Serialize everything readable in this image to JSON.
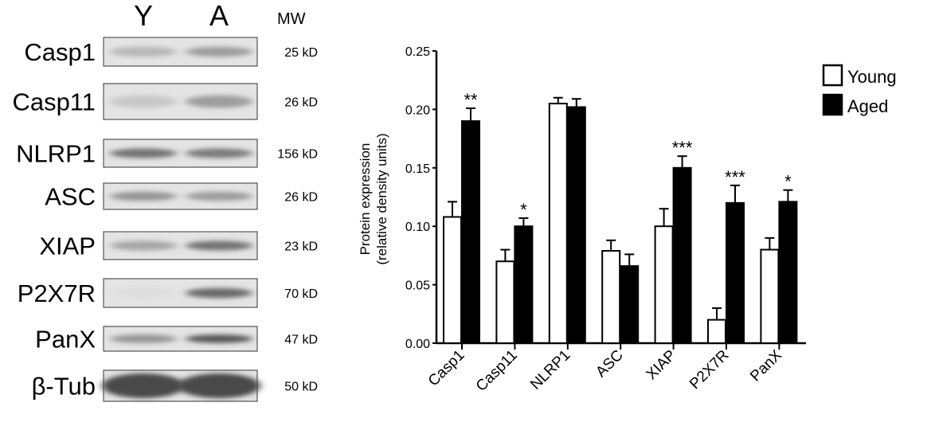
{
  "blot": {
    "lane_labels": [
      "Y",
      "A"
    ],
    "mw_header": "MW",
    "rows": [
      {
        "protein": "Casp1",
        "mw": "25 kD",
        "band_intensity": [
          0.25,
          0.4
        ]
      },
      {
        "protein": "Casp11",
        "mw": "26 kD",
        "band_intensity": [
          0.15,
          0.4
        ]
      },
      {
        "protein": "NLRP1",
        "mw": "156 kD",
        "band_intensity": [
          0.65,
          0.6
        ]
      },
      {
        "protein": "ASC",
        "mw": "26 kD",
        "band_intensity": [
          0.45,
          0.4
        ]
      },
      {
        "protein": "XIAP",
        "mw": "23 kD",
        "band_intensity": [
          0.35,
          0.65
        ]
      },
      {
        "protein": "P2X7R",
        "mw": "70 kD",
        "band_intensity": [
          0.02,
          0.7
        ]
      },
      {
        "protein": "PanX",
        "mw": "47 kD",
        "band_intensity": [
          0.45,
          0.8
        ]
      },
      {
        "protein": "β-Tub",
        "mw": "50 kD",
        "band_intensity": [
          0.9,
          0.9
        ]
      }
    ]
  },
  "chart_data": {
    "type": "bar",
    "ylabel_lines": [
      "Protein expression",
      "(relative density units)"
    ],
    "ylim": [
      0,
      0.25
    ],
    "yticks": [
      "0.00",
      "0.05",
      "0.10",
      "0.15",
      "0.20",
      "0.25"
    ],
    "categories": [
      "Casp1",
      "Casp11",
      "NLRP1",
      "ASC",
      "XIAP",
      "P2X7R",
      "PanX"
    ],
    "series": [
      {
        "name": "Young",
        "color": "#ffffff",
        "values": [
          0.108,
          0.07,
          0.205,
          0.079,
          0.1,
          0.02,
          0.08
        ],
        "errors": [
          0.013,
          0.01,
          0.005,
          0.009,
          0.015,
          0.01,
          0.01
        ]
      },
      {
        "name": "Aged",
        "color": "#000000",
        "values": [
          0.19,
          0.1,
          0.202,
          0.066,
          0.15,
          0.12,
          0.121
        ],
        "errors": [
          0.011,
          0.007,
          0.007,
          0.01,
          0.01,
          0.015,
          0.01
        ]
      }
    ],
    "significance": [
      "**",
      "*",
      "",
      "",
      "***",
      "***",
      "*"
    ],
    "legend_position": "top-right",
    "grid": false
  }
}
